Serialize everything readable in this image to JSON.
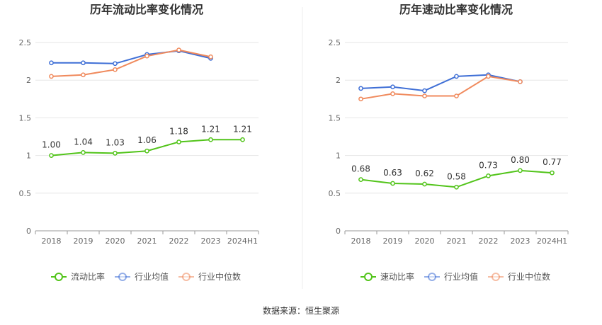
{
  "source": "数据来源：恒生聚源",
  "colors": {
    "green": "#52c41a",
    "blue": "#3f6fd6",
    "orange": "#f08a5d",
    "grid": "#e6e6e6",
    "axis": "#999999",
    "divider": "#eeeeee"
  },
  "chart_data": [
    {
      "type": "line",
      "title": "历年流动比率变化情况",
      "categories": [
        "2018",
        "2019",
        "2020",
        "2021",
        "2022",
        "2023",
        "2024H1"
      ],
      "ylim": [
        0,
        2.5
      ],
      "yticks": [
        "0",
        "0.5",
        "1",
        "1.5",
        "2",
        "2.5"
      ],
      "grid": true,
      "legend_position": "bottom",
      "series": [
        {
          "name": "流动比率",
          "color": "#52c41a",
          "values": [
            1.0,
            1.04,
            1.03,
            1.06,
            1.18,
            1.21,
            1.21
          ],
          "labels": [
            "1.00",
            "1.04",
            "1.03",
            "1.06",
            "1.18",
            "1.21",
            "1.21"
          ]
        },
        {
          "name": "行业均值",
          "color": "#3f6fd6",
          "values": [
            2.23,
            2.23,
            2.22,
            2.34,
            2.39,
            2.29,
            null
          ]
        },
        {
          "name": "行业中位数",
          "color": "#f08a5d",
          "values": [
            2.05,
            2.07,
            2.14,
            2.32,
            2.4,
            2.31,
            null
          ]
        }
      ]
    },
    {
      "type": "line",
      "title": "历年速动比率变化情况",
      "categories": [
        "2018",
        "2019",
        "2020",
        "2021",
        "2022",
        "2023",
        "2024H1"
      ],
      "ylim": [
        0,
        2.5
      ],
      "yticks": [
        "0",
        "0.5",
        "1",
        "1.5",
        "2",
        "2.5"
      ],
      "grid": true,
      "legend_position": "bottom",
      "series": [
        {
          "name": "速动比率",
          "color": "#52c41a",
          "values": [
            0.68,
            0.63,
            0.62,
            0.58,
            0.73,
            0.8,
            0.77
          ],
          "labels": [
            "0.68",
            "0.63",
            "0.62",
            "0.58",
            "0.73",
            "0.80",
            "0.77"
          ]
        },
        {
          "name": "行业均值",
          "color": "#3f6fd6",
          "values": [
            1.89,
            1.91,
            1.86,
            2.05,
            2.07,
            1.98,
            null
          ]
        },
        {
          "name": "行业中位数",
          "color": "#f08a5d",
          "values": [
            1.75,
            1.82,
            1.79,
            1.79,
            2.05,
            1.98,
            null
          ]
        }
      ]
    }
  ]
}
